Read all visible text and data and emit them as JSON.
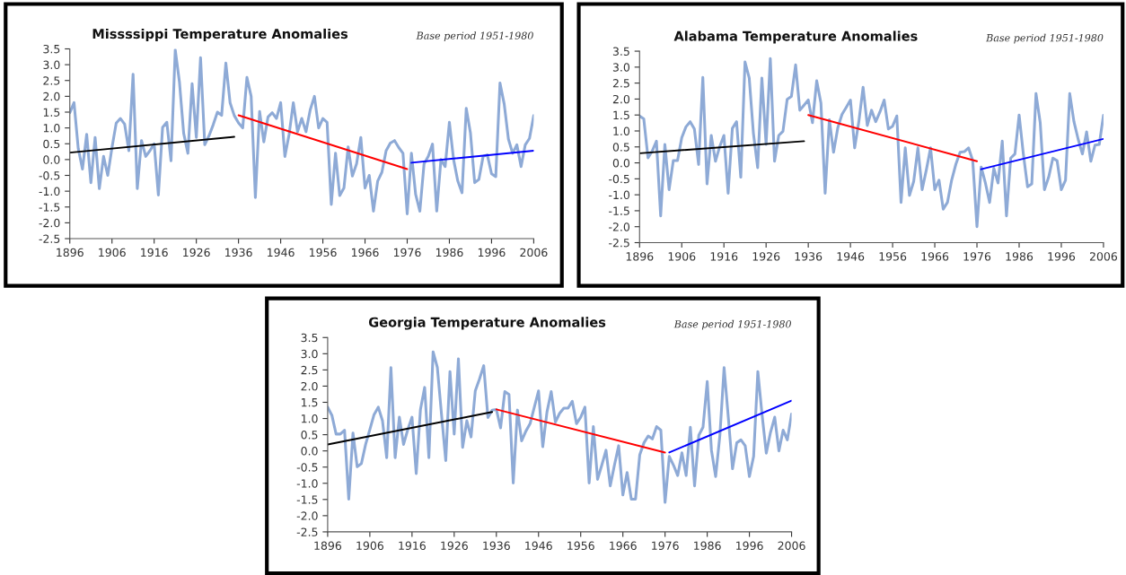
{
  "chart_data": [
    {
      "type": "line",
      "title": "Missssippi Temperature Anomalies",
      "subtitle": "Base period 1951-1980",
      "xlim": [
        1896,
        2006
      ],
      "xticks": [
        1896,
        1906,
        1916,
        1926,
        1936,
        1946,
        1956,
        1966,
        1976,
        1986,
        1996,
        2006
      ],
      "ylim": [
        -2.5,
        3.5
      ],
      "yticks": [
        {
          "value": -2.5,
          "label": "-2.5"
        },
        {
          "value": -2,
          "label": "-2.0"
        },
        {
          "value": -1.5,
          "label": "-1.5"
        },
        {
          "value": -1,
          "label": "-1.0"
        },
        {
          "value": -0.5,
          "label": "-0.5"
        },
        {
          "value": 0,
          "label": "0.0"
        },
        {
          "value": 0.5,
          "label": "0.5"
        },
        {
          "value": 1,
          "label": "1.0"
        },
        {
          "value": 1.5,
          "label": "1.5"
        },
        {
          "value": 2,
          "label": "2.0"
        },
        {
          "value": 2.5,
          "label": "2.5"
        },
        {
          "value": 3,
          "label": "3.0"
        },
        {
          "value": 3.5,
          "label": "3.5"
        }
      ],
      "series": [
        {
          "color": "#8eaad6",
          "x": [
            1896,
            1897,
            1898,
            1899,
            1900,
            1901,
            1902,
            1903,
            1904,
            1905,
            1906,
            1907,
            1908,
            1909,
            1910,
            1911,
            1912,
            1913,
            1914,
            1915,
            1916,
            1917,
            1918,
            1919,
            1920,
            1921,
            1922,
            1923,
            1924,
            1925,
            1926,
            1927,
            1928,
            1929,
            1930,
            1931,
            1932,
            1933,
            1934,
            1935,
            1936,
            1937,
            1938,
            1939,
            1940,
            1941,
            1942,
            1943,
            1944,
            1945,
            1946,
            1947,
            1948,
            1949,
            1950,
            1951,
            1952,
            1953,
            1954,
            1955,
            1956,
            1957,
            1958,
            1959,
            1960,
            1961,
            1962,
            1963,
            1964,
            1965,
            1966,
            1967,
            1968,
            1969,
            1970,
            1971,
            1972,
            1973,
            1974,
            1975,
            1976,
            1977,
            1978,
            1979,
            1980,
            1981,
            1982,
            1983,
            1984,
            1985,
            1986,
            1987,
            1988,
            1989,
            1990,
            1991,
            1992,
            1993,
            1994,
            1995,
            1996,
            1997,
            1998,
            1999,
            2000,
            2001,
            2002,
            2003,
            2004,
            2005,
            2006
          ],
          "values": [
            1.48,
            1.8,
            0.35,
            -0.3,
            0.8,
            -0.73,
            0.7,
            -0.92,
            0.1,
            -0.5,
            0.38,
            1.15,
            1.3,
            1.12,
            0.28,
            2.7,
            -0.92,
            0.6,
            0.1,
            0.28,
            0.5,
            -1.12,
            1.02,
            1.18,
            -0.04,
            3.47,
            2.45,
            0.83,
            0.2,
            2.4,
            0.7,
            3.22,
            0.47,
            0.75,
            1.1,
            1.5,
            1.4,
            3.05,
            1.8,
            1.39,
            1.16,
            1.0,
            2.6,
            2.0,
            -1.2,
            1.52,
            0.56,
            1.35,
            1.48,
            1.3,
            1.8,
            0.1,
            0.8,
            1.8,
            0.88,
            1.3,
            0.88,
            1.57,
            2.0,
            1.0,
            1.3,
            1.18,
            -1.42,
            0.2,
            -1.14,
            -0.9,
            0.4,
            -0.52,
            -0.13,
            0.7,
            -0.9,
            -0.5,
            -1.63,
            -0.68,
            -0.4,
            0.28,
            0.52,
            0.6,
            0.38,
            0.2,
            -1.72,
            0.2,
            -1.1,
            -1.63,
            -0.13,
            0.1,
            0.49,
            -1.63,
            0.0,
            -0.22,
            1.18,
            0.0,
            -0.68,
            -1.05,
            1.62,
            0.84,
            -0.73,
            -0.63,
            0.1,
            0.15,
            -0.45,
            -0.54,
            2.42,
            1.76,
            0.65,
            0.2,
            0.47,
            -0.22,
            0.47,
            0.67,
            1.39
          ]
        },
        {
          "color": "#000000",
          "x": [
            1896,
            1935
          ],
          "values": [
            0.22,
            0.72
          ]
        },
        {
          "color": "#ff0000",
          "x": [
            1936,
            1976
          ],
          "values": [
            1.4,
            -0.3
          ]
        },
        {
          "color": "#0000ff",
          "x": [
            1977,
            2006
          ],
          "values": [
            -0.1,
            0.28
          ]
        }
      ]
    },
    {
      "type": "line",
      "title": "Alabama Temperature Anomalies",
      "subtitle": "Base period 1951-1980",
      "xlim": [
        1896,
        2006
      ],
      "xticks": [
        1896,
        1906,
        1916,
        1926,
        1936,
        1946,
        1956,
        1966,
        1976,
        1986,
        1996,
        2006
      ],
      "ylim": [
        -2.5,
        3.5
      ],
      "yticks": [
        {
          "value": -2.5,
          "label": "-2.5"
        },
        {
          "value": -2,
          "label": "-2.0"
        },
        {
          "value": -1.5,
          "label": "-1.5"
        },
        {
          "value": -1,
          "label": "-1.0"
        },
        {
          "value": -0.5,
          "label": "-0.5"
        },
        {
          "value": 0,
          "label": "0.0"
        },
        {
          "value": 0.5,
          "label": "0.5"
        },
        {
          "value": 1,
          "label": "1.0"
        },
        {
          "value": 1.5,
          "label": "1.5"
        },
        {
          "value": 2,
          "label": "2.0"
        },
        {
          "value": 2.5,
          "label": "2.5"
        },
        {
          "value": 3,
          "label": "3.0"
        },
        {
          "value": 3.5,
          "label": "3.5"
        }
      ],
      "series": [
        {
          "color": "#8eaad6",
          "x": [
            1896,
            1897,
            1898,
            1899,
            1900,
            1901,
            1902,
            1903,
            1904,
            1905,
            1906,
            1907,
            1908,
            1909,
            1910,
            1911,
            1912,
            1913,
            1914,
            1915,
            1916,
            1917,
            1918,
            1919,
            1920,
            1921,
            1922,
            1923,
            1924,
            1925,
            1926,
            1927,
            1928,
            1929,
            1930,
            1931,
            1932,
            1933,
            1934,
            1935,
            1936,
            1937,
            1938,
            1939,
            1940,
            1941,
            1942,
            1943,
            1944,
            1945,
            1946,
            1947,
            1948,
            1949,
            1950,
            1951,
            1952,
            1953,
            1954,
            1955,
            1956,
            1957,
            1958,
            1959,
            1960,
            1961,
            1962,
            1963,
            1964,
            1965,
            1966,
            1967,
            1968,
            1969,
            1970,
            1971,
            1972,
            1973,
            1974,
            1975,
            1976,
            1977,
            1978,
            1979,
            1980,
            1981,
            1982,
            1983,
            1984,
            1985,
            1986,
            1987,
            1988,
            1989,
            1990,
            1991,
            1992,
            1993,
            1994,
            1995,
            1996,
            1997,
            1998,
            1999,
            2000,
            2001,
            2002,
            2003,
            2004,
            2005,
            2006
          ],
          "values": [
            1.47,
            1.38,
            0.16,
            0.37,
            0.68,
            -1.66,
            0.58,
            -0.84,
            0.07,
            0.07,
            0.79,
            1.13,
            1.29,
            1.06,
            -0.05,
            2.68,
            -0.66,
            0.86,
            0.05,
            0.51,
            0.86,
            -0.95,
            1.08,
            1.29,
            -0.45,
            3.16,
            2.66,
            0.92,
            -0.15,
            2.66,
            0.58,
            3.27,
            0.05,
            0.86,
            0.99,
            1.99,
            2.08,
            3.07,
            1.65,
            1.81,
            1.97,
            1.26,
            2.57,
            1.88,
            -0.95,
            1.35,
            0.33,
            1.1,
            1.52,
            1.74,
            1.97,
            0.47,
            1.3,
            2.37,
            1.17,
            1.65,
            1.29,
            1.6,
            1.97,
            1.06,
            1.15,
            1.47,
            -1.24,
            0.47,
            -1.02,
            -0.58,
            0.47,
            -0.84,
            -0.22,
            0.47,
            -0.84,
            -0.54,
            -1.45,
            -1.24,
            -0.54,
            -0.04,
            0.33,
            0.35,
            0.47,
            0.07,
            -2.0,
            -0.13,
            -0.63,
            -1.24,
            -0.17,
            -0.63,
            0.68,
            -1.66,
            0.15,
            0.28,
            1.5,
            0.28,
            -0.75,
            -0.66,
            2.17,
            1.26,
            -0.84,
            -0.45,
            0.15,
            0.07,
            -0.84,
            -0.54,
            2.17,
            1.29,
            0.74,
            0.28,
            0.97,
            0.05,
            0.56,
            0.58,
            1.49
          ]
        },
        {
          "color": "#000000",
          "x": [
            1896,
            1935
          ],
          "values": [
            0.3,
            0.68
          ]
        },
        {
          "color": "#ff0000",
          "x": [
            1936,
            1976
          ],
          "values": [
            1.5,
            0.05
          ]
        },
        {
          "color": "#0000ff",
          "x": [
            1977,
            2006
          ],
          "values": [
            -0.2,
            0.75
          ]
        }
      ]
    },
    {
      "type": "line",
      "title": "Georgia Temperature Anomalies",
      "subtitle": "Base period 1951-1980",
      "xlim": [
        1896,
        2006
      ],
      "xticks": [
        1896,
        1906,
        1916,
        1926,
        1936,
        1946,
        1956,
        1966,
        1976,
        1986,
        1996,
        2006
      ],
      "ylim": [
        -2.5,
        3.5
      ],
      "yticks": [
        {
          "value": -2.5,
          "label": "-2.5"
        },
        {
          "value": -2,
          "label": "-2.0"
        },
        {
          "value": -1.5,
          "label": "-1.5"
        },
        {
          "value": -1,
          "label": "-1.0"
        },
        {
          "value": -0.5,
          "label": "-0.5"
        },
        {
          "value": 0,
          "label": "0.0"
        },
        {
          "value": 0.5,
          "label": "0.5"
        },
        {
          "value": 1,
          "label": "1.0"
        },
        {
          "value": 1.5,
          "label": "1.5"
        },
        {
          "value": 2,
          "label": "2.0"
        },
        {
          "value": 2.5,
          "label": "2.5"
        },
        {
          "value": 3,
          "label": "3.0"
        },
        {
          "value": 3.5,
          "label": "3.5"
        }
      ],
      "series": [
        {
          "color": "#8eaad6",
          "x": [
            1896,
            1897,
            1898,
            1899,
            1900,
            1901,
            1902,
            1903,
            1904,
            1905,
            1906,
            1907,
            1908,
            1909,
            1910,
            1911,
            1912,
            1913,
            1914,
            1915,
            1916,
            1917,
            1918,
            1919,
            1920,
            1921,
            1922,
            1923,
            1924,
            1925,
            1926,
            1927,
            1928,
            1929,
            1930,
            1931,
            1932,
            1933,
            1934,
            1935,
            1936,
            1937,
            1938,
            1939,
            1940,
            1941,
            1942,
            1943,
            1944,
            1945,
            1946,
            1947,
            1948,
            1949,
            1950,
            1951,
            1952,
            1953,
            1954,
            1955,
            1956,
            1957,
            1958,
            1959,
            1960,
            1961,
            1962,
            1963,
            1964,
            1965,
            1966,
            1967,
            1968,
            1969,
            1970,
            1971,
            1972,
            1973,
            1974,
            1975,
            1976,
            1977,
            1978,
            1979,
            1980,
            1981,
            1982,
            1983,
            1984,
            1985,
            1986,
            1987,
            1988,
            1989,
            1990,
            1991,
            1992,
            1993,
            1994,
            1995,
            1996,
            1997,
            1998,
            1999,
            2000,
            2001,
            2002,
            2003,
            2004,
            2005,
            2006
          ],
          "values": [
            1.35,
            1.1,
            0.52,
            0.52,
            0.64,
            -1.49,
            0.55,
            -0.49,
            -0.39,
            0.2,
            0.66,
            1.12,
            1.35,
            0.93,
            -0.21,
            2.57,
            -0.21,
            1.04,
            0.2,
            0.66,
            1.04,
            -0.7,
            1.28,
            1.96,
            -0.21,
            3.06,
            2.58,
            1.12,
            -0.3,
            2.45,
            0.52,
            2.84,
            0.11,
            0.93,
            0.43,
            1.85,
            2.22,
            2.63,
            1.03,
            1.26,
            1.28,
            0.71,
            1.83,
            1.74,
            -0.99,
            1.26,
            0.31,
            0.61,
            0.84,
            1.35,
            1.85,
            0.13,
            1.2,
            1.83,
            0.89,
            1.16,
            1.32,
            1.32,
            1.53,
            0.84,
            1.04,
            1.35,
            -0.99,
            0.75,
            -0.88,
            -0.44,
            0.02,
            -1.08,
            -0.44,
            0.16,
            -1.36,
            -0.67,
            -1.49,
            -1.49,
            -0.12,
            0.25,
            0.46,
            0.37,
            0.75,
            0.64,
            -1.59,
            -0.17,
            -0.44,
            -0.76,
            -0.06,
            -0.76,
            0.73,
            -1.08,
            0.48,
            0.73,
            2.14,
            0.02,
            -0.79,
            0.48,
            2.57,
            1.03,
            -0.55,
            0.25,
            0.34,
            0.16,
            -0.79,
            -0.17,
            2.45,
            1.12,
            -0.07,
            0.57,
            1.04,
            0.0,
            0.64,
            0.34,
            1.14
          ]
        },
        {
          "color": "#000000",
          "x": [
            1896,
            1935
          ],
          "values": [
            0.2,
            1.2
          ]
        },
        {
          "color": "#ff0000",
          "x": [
            1936,
            1976
          ],
          "values": [
            1.28,
            -0.05
          ]
        },
        {
          "color": "#0000ff",
          "x": [
            1977,
            2006
          ],
          "values": [
            -0.05,
            1.55
          ]
        }
      ]
    }
  ]
}
